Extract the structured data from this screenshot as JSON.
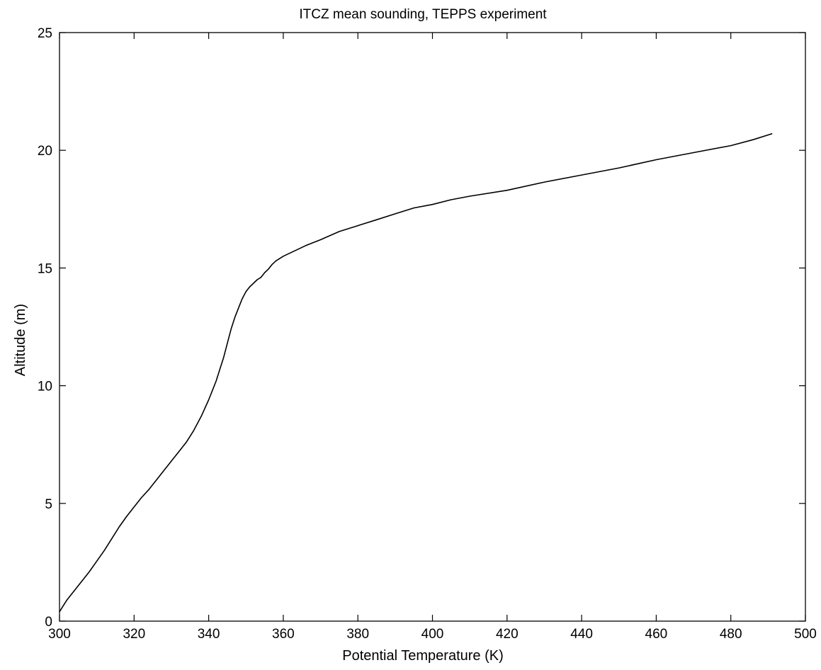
{
  "chart_data": {
    "type": "line",
    "title": "ITCZ mean sounding, TEPPS experiment",
    "xlabel": "Potential Temperature (K)",
    "ylabel": "Altitude (m)",
    "xlim": [
      300,
      500
    ],
    "ylim": [
      0,
      25
    ],
    "x_ticks": [
      300,
      320,
      340,
      360,
      380,
      400,
      420,
      440,
      460,
      480,
      500
    ],
    "y_ticks": [
      0,
      5,
      10,
      15,
      20,
      25
    ],
    "grid": false,
    "legend": "none",
    "line_color": "#000000",
    "series": [
      {
        "x": [
          300,
          302,
          304,
          306,
          308,
          310,
          312,
          314,
          316,
          318,
          320,
          322,
          324,
          326,
          328,
          329,
          330,
          332,
          334,
          336,
          338,
          340,
          341,
          342,
          343,
          344,
          345,
          346,
          347,
          348,
          349,
          350,
          351,
          352,
          353,
          354,
          355,
          356,
          357,
          358,
          360,
          362,
          364,
          366,
          370,
          375,
          380,
          385,
          390,
          395,
          400,
          405,
          410,
          420,
          430,
          440,
          450,
          460,
          470,
          480,
          486,
          491
        ],
        "y": [
          0.4,
          0.9,
          1.3,
          1.7,
          2.1,
          2.55,
          3.0,
          3.5,
          4.0,
          4.45,
          4.85,
          5.25,
          5.6,
          6.0,
          6.4,
          6.6,
          6.8,
          7.2,
          7.6,
          8.1,
          8.7,
          9.4,
          9.8,
          10.2,
          10.7,
          11.2,
          11.8,
          12.4,
          12.9,
          13.3,
          13.7,
          14.0,
          14.2,
          14.35,
          14.5,
          14.6,
          14.8,
          14.95,
          15.15,
          15.3,
          15.5,
          15.65,
          15.8,
          15.95,
          16.2,
          16.55,
          16.8,
          17.05,
          17.3,
          17.55,
          17.7,
          17.9,
          18.05,
          18.3,
          18.65,
          18.95,
          19.25,
          19.6,
          19.9,
          20.2,
          20.45,
          20.7
        ]
      }
    ]
  }
}
